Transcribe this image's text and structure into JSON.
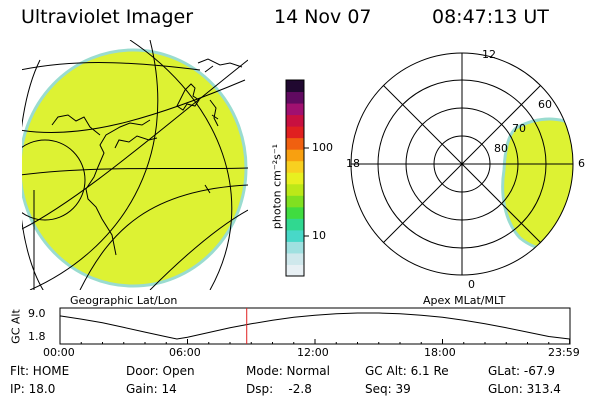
{
  "header": {
    "title": "Ultraviolet Imager",
    "date": "14 Nov 07",
    "time": "08:47:13 UT"
  },
  "geo_panel": {
    "label": "Geographic Lat/Lon",
    "fill_color": "#ddf233"
  },
  "colorbar": {
    "label": "photon cm⁻²s⁻¹",
    "ticks": [
      "100",
      "10"
    ],
    "colors": [
      "#e8f0f4",
      "#cfe8ec",
      "#9fe0e0",
      "#48d8c8",
      "#30d890",
      "#40dc40",
      "#80e020",
      "#bce818",
      "#e8f020",
      "#f8d020",
      "#f8a010",
      "#f06010",
      "#e02020",
      "#c81040",
      "#a01070",
      "#600a60",
      "#200830"
    ]
  },
  "polar_panel": {
    "label": "Apex MLat/MLT",
    "mlt_labels": {
      "top": "12",
      "left": "18",
      "right": "6",
      "bottom": "0"
    },
    "lat_labels": [
      "60",
      "70",
      "80"
    ],
    "fill_color": "#ddf233"
  },
  "chart_data": {
    "type": "line",
    "title": "",
    "ylabel": "GC Alt",
    "ytick_labels": [
      "9.0",
      "1.8"
    ],
    "ylim": [
      1.8,
      9.0
    ],
    "xlim": [
      0,
      24
    ],
    "xtick_labels": [
      "00:00",
      "06:00",
      "12:00",
      "18:00",
      "23:59"
    ],
    "current_time_hours": 8.787,
    "current_marker_color": "#e02020",
    "series": [
      {
        "x": [
          0,
          1,
          2,
          3,
          4,
          5,
          5.5,
          6,
          7,
          8,
          9,
          10,
          11,
          12,
          13,
          14,
          15,
          16,
          17,
          18,
          19,
          20,
          21,
          22,
          23,
          23.98
        ],
        "values": [
          8.2,
          7.3,
          6.3,
          5.0,
          3.7,
          2.4,
          1.8,
          2.3,
          3.6,
          4.9,
          6.0,
          7.0,
          7.8,
          8.4,
          8.8,
          9.0,
          9.0,
          8.8,
          8.4,
          7.8,
          7.0,
          6.0,
          4.9,
          3.7,
          2.5,
          1.8
        ]
      }
    ]
  },
  "status": {
    "flt": "Flt: HOME",
    "ip": "IP: 18.0",
    "door": "Door: Open",
    "gain": "Gain: 14",
    "mode": "Mode: Normal",
    "dsp": "Dsp:    -2.8",
    "gcalt": "GC Alt: 6.1 Re",
    "seq": "Seq: 39",
    "glat": "GLat: -67.9",
    "glon": "GLon: 313.4"
  }
}
